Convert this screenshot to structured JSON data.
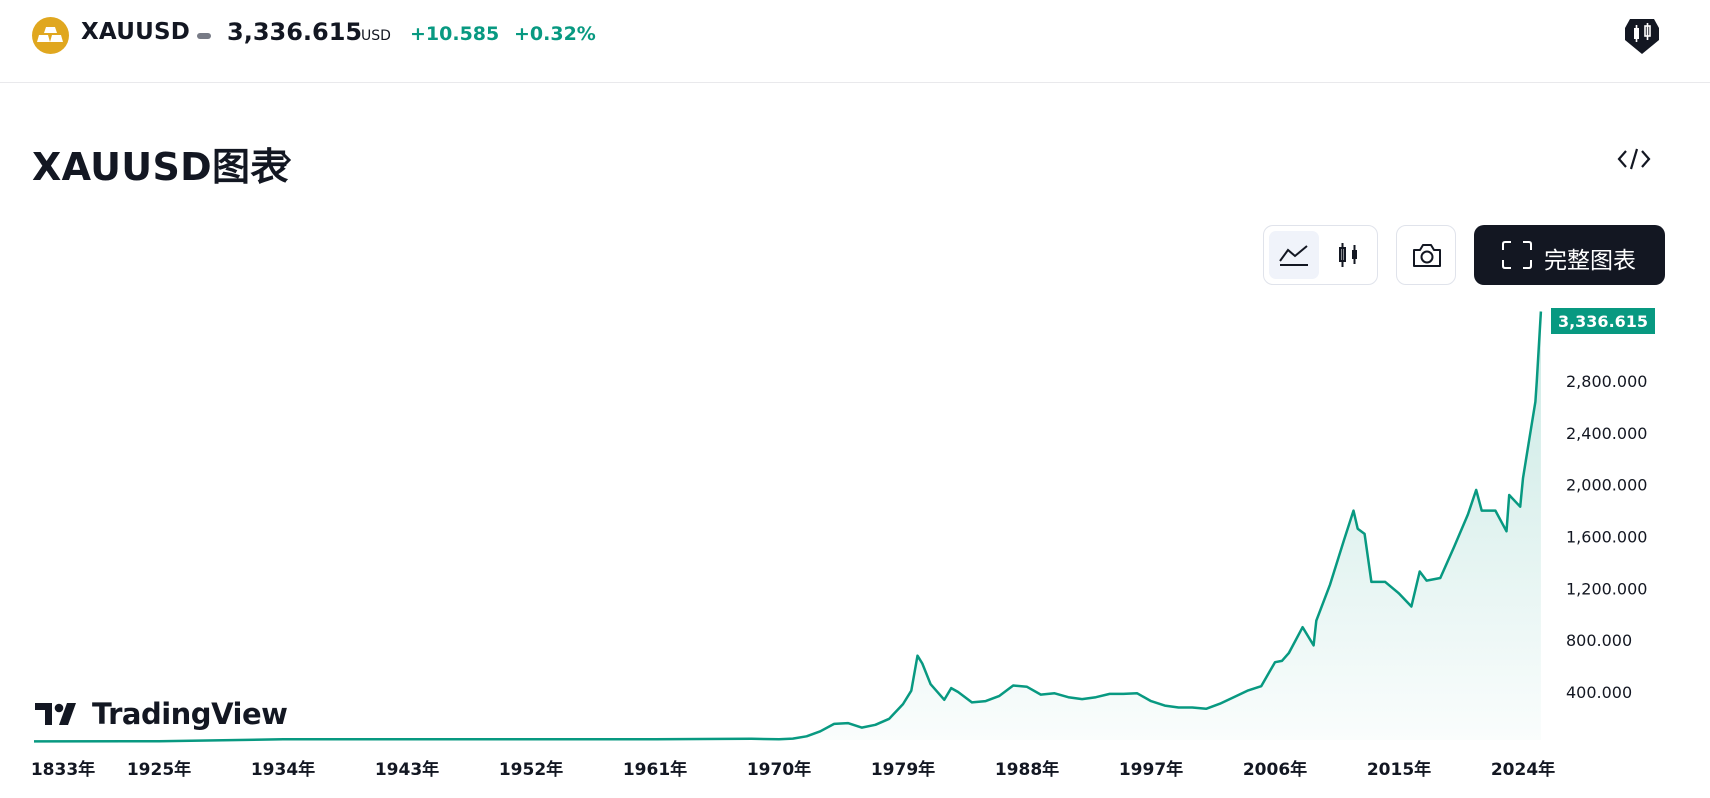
{
  "header": {
    "symbol": "XAUUSD",
    "price": "3,336.615",
    "currency": "USD",
    "change": "+10.585",
    "change_percent": "+0.32%",
    "logo_icon": "gold-bars-icon",
    "tv_icon": "tradingview-candle-badge-icon"
  },
  "section": {
    "title": "XAUUSD图表",
    "chevron_icon": "chevron-right-icon",
    "embed_icon": "code-embed-icon"
  },
  "toolbar": {
    "area_icon": "area-chart-icon",
    "candle_icon": "candlestick-icon",
    "camera_icon": "camera-icon",
    "fullscreen_icon": "fullscreen-icon",
    "full_chart_label": "完整图表"
  },
  "watermark": {
    "text": "TradingView",
    "icon": "tradingview-logo-icon"
  },
  "colors": {
    "accent": "#089981",
    "gold": "#e0a71f",
    "dark": "#131722"
  },
  "chart_data": {
    "type": "area",
    "x_tick_labels": [
      "1833年",
      "1925年",
      "1934年",
      "1943年",
      "1952年",
      "1961年",
      "1970年",
      "1979年",
      "1988年",
      "1997年",
      "2006年",
      "2015年",
      "2024年"
    ],
    "y_tick_labels": [
      "400.000",
      "800.000",
      "1,200.000",
      "1,600.000",
      "2,000.000",
      "2,400.000",
      "2,800.000"
    ],
    "last_value_label": "3,336.615",
    "ylim": [
      0,
      3400
    ],
    "grid": false,
    "series": [
      {
        "x": [
          1833,
          1925,
          1934,
          1943,
          1952,
          1961,
          1968,
          1970,
          1971,
          1972,
          1973,
          1974,
          1975,
          1976,
          1977,
          1978,
          1979,
          1979.6,
          1980.05,
          1980.4,
          1981,
          1982,
          1982.5,
          1983,
          1984,
          1985,
          1986,
          1987,
          1988,
          1989,
          1990,
          1991,
          1992,
          1993,
          1994,
          1995,
          1996,
          1997,
          1998,
          1999,
          2000,
          2001,
          2002,
          2003,
          2004,
          2005,
          2006,
          2006.5,
          2007,
          2008,
          2008.8,
          2009,
          2010,
          2011,
          2011.7,
          2012,
          2012.5,
          2013,
          2014,
          2015,
          2015.9,
          2016.5,
          2017,
          2018,
          2019,
          2020,
          2020.6,
          2021,
          2022,
          2022.8,
          2023,
          2023.8,
          2024,
          2024.5,
          2024.9,
          2025,
          2025.3
        ],
        "y": [
          19,
          20,
          35,
          35,
          35,
          35,
          39,
          36,
          40,
          58,
          97,
          154,
          160,
          125,
          147,
          193,
          307,
          410,
          680,
          620,
          460,
          340,
          430,
          400,
          320,
          330,
          370,
          450,
          440,
          380,
          390,
          360,
          345,
          360,
          385,
          385,
          390,
          330,
          295,
          280,
          280,
          270,
          310,
          360,
          410,
          445,
          630,
          640,
          700,
          900,
          760,
          950,
          1230,
          1570,
          1800,
          1660,
          1620,
          1250,
          1250,
          1160,
          1060,
          1330,
          1260,
          1280,
          1520,
          1770,
          1960,
          1800,
          1800,
          1640,
          1920,
          1830,
          2050,
          2380,
          2640,
          2800,
          3336.615
        ]
      }
    ]
  }
}
